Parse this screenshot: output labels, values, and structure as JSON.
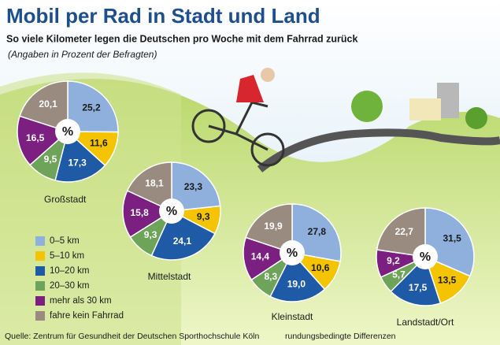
{
  "title": "Mobil per Rad in Stadt und Land",
  "subtitle": "So viele Kilometer legen die Deutschen pro Woche mit dem Fahrrad zurück",
  "note": "(Angaben in Prozent der Befragten)",
  "legend": {
    "categories": [
      "0–5 km",
      "5–10 km",
      "10–20 km",
      "20–30 km",
      "mehr als 30 km",
      "fahre kein Fahrrad"
    ],
    "colors": [
      "#8fb0dc",
      "#f5c400",
      "#1f5aa6",
      "#6ea35a",
      "#7b1f80",
      "#9a8b80"
    ]
  },
  "source": "Quelle: Zentrum für Gesundheit der Deutschen Sporthochschule Köln",
  "footnote": "rundungsbedingte Differenzen",
  "chart_data": [
    {
      "type": "pie",
      "title": "Großstadt",
      "center_label": "%",
      "values": [
        25.2,
        11.6,
        17.3,
        9.5,
        16.5,
        20.1
      ],
      "value_labels": [
        "25,2",
        "11,6",
        "17,3",
        "9,5",
        "16,5",
        "20,1"
      ]
    },
    {
      "type": "pie",
      "title": "Mittelstadt",
      "center_label": "%",
      "values": [
        23.3,
        9.3,
        24.1,
        9.3,
        15.8,
        18.1
      ],
      "value_labels": [
        "23,3",
        "9,3",
        "24,1",
        "9,3",
        "15,8",
        "18,1"
      ]
    },
    {
      "type": "pie",
      "title": "Kleinstadt",
      "center_label": "%",
      "values": [
        27.8,
        10.6,
        19,
        8.3,
        14.4,
        19.9
      ],
      "value_labels": [
        "27,8",
        "10,6",
        "19,0",
        "8,3",
        "14,4",
        "19,9"
      ]
    },
    {
      "type": "pie",
      "title": "Landstadt/Ort",
      "center_label": "%",
      "values": [
        31.5,
        13.5,
        17.5,
        5.7,
        9.2,
        22.7
      ],
      "value_labels": [
        "31,5",
        "13,5",
        "17,5",
        "5,7",
        "9,2",
        "22,7"
      ]
    }
  ]
}
